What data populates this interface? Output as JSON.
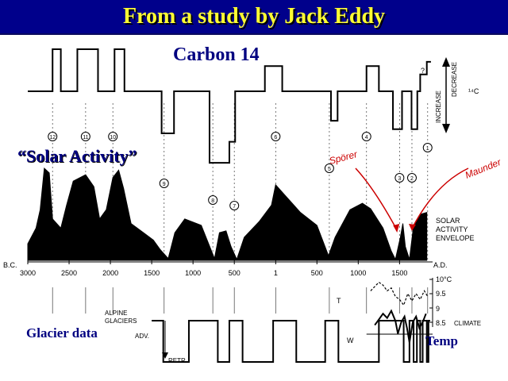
{
  "slide": {
    "title": "From a study by Jack Eddy",
    "carbon_label": "Carbon 14",
    "solar_label": "“Solar Activity”",
    "glacier_label": "Glacier data",
    "temp_label": "Temp"
  },
  "chart_data": {
    "type": "line",
    "x_axis": {
      "domain": [
        -3000,
        1900
      ],
      "ticks": [
        -3000,
        -2500,
        -2000,
        -1500,
        -1000,
        -500,
        1,
        500,
        1000,
        1500
      ],
      "tick_labels": [
        "3000",
        "2500",
        "2000",
        "1500",
        "1000",
        "500",
        "1",
        "500",
        "1000",
        "1500"
      ],
      "left_era": "B.C.",
      "right_era": "A.D."
    },
    "carbon14": {
      "axis_label_increase": "INCREASE",
      "axis_label_decrease": "DECREASE",
      "axis_label_unit": "¹⁴C",
      "question_mark": "?",
      "levels": [
        {
          "x": -3000,
          "v": 0
        },
        {
          "x": -2700,
          "v": 1
        },
        {
          "x": -2600,
          "v": 0
        },
        {
          "x": -2400,
          "v": 1
        },
        {
          "x": -2150,
          "v": 0
        },
        {
          "x": -1950,
          "v": 1
        },
        {
          "x": -1830,
          "v": 0
        },
        {
          "x": -1380,
          "v": -1
        },
        {
          "x": -1230,
          "v": 0
        },
        {
          "x": -800,
          "v": -1.7
        },
        {
          "x": -560,
          "v": -1.2
        },
        {
          "x": -490,
          "v": 0
        },
        {
          "x": -130,
          "v": 0.6
        },
        {
          "x": 80,
          "v": 0
        },
        {
          "x": 670,
          "v": -0.7
        },
        {
          "x": 750,
          "v": 0
        },
        {
          "x": 1100,
          "v": 0.6
        },
        {
          "x": 1250,
          "v": 0
        },
        {
          "x": 1420,
          "v": -0.9
        },
        {
          "x": 1530,
          "v": 0
        },
        {
          "x": 1645,
          "v": -0.9
        },
        {
          "x": 1715,
          "v": 0
        },
        {
          "x": 1750,
          "v": 0.4
        },
        {
          "x": 1830,
          "v": 0.7
        }
      ]
    },
    "solar_envelope": {
      "label": [
        "SOLAR",
        "ACTIVITY",
        "ENVELOPE"
      ],
      "points": [
        {
          "x": -3000,
          "y": 0.18
        },
        {
          "x": -2900,
          "y": 0.35
        },
        {
          "x": -2850,
          "y": 0.55
        },
        {
          "x": -2800,
          "y": 1.0
        },
        {
          "x": -2740,
          "y": 0.95
        },
        {
          "x": -2700,
          "y": 0.45
        },
        {
          "x": -2600,
          "y": 0.35
        },
        {
          "x": -2530,
          "y": 0.6
        },
        {
          "x": -2450,
          "y": 0.86
        },
        {
          "x": -2300,
          "y": 0.93
        },
        {
          "x": -2200,
          "y": 0.8
        },
        {
          "x": -2130,
          "y": 0.45
        },
        {
          "x": -2050,
          "y": 0.55
        },
        {
          "x": -1970,
          "y": 0.9
        },
        {
          "x": -1900,
          "y": 0.98
        },
        {
          "x": -1840,
          "y": 0.78
        },
        {
          "x": -1750,
          "y": 0.4
        },
        {
          "x": -1600,
          "y": 0.3
        },
        {
          "x": -1480,
          "y": 0.22
        },
        {
          "x": -1400,
          "y": 0.12
        },
        {
          "x": -1300,
          "y": 0.02
        },
        {
          "x": -1220,
          "y": 0.3
        },
        {
          "x": -1100,
          "y": 0.45
        },
        {
          "x": -900,
          "y": 0.38
        },
        {
          "x": -820,
          "y": 0.2
        },
        {
          "x": -740,
          "y": 0.02
        },
        {
          "x": -680,
          "y": 0.3
        },
        {
          "x": -600,
          "y": 0.32
        },
        {
          "x": -540,
          "y": 0.15
        },
        {
          "x": -470,
          "y": 0.01
        },
        {
          "x": -380,
          "y": 0.25
        },
        {
          "x": -200,
          "y": 0.42
        },
        {
          "x": -50,
          "y": 0.6
        },
        {
          "x": 0,
          "y": 0.82
        },
        {
          "x": 120,
          "y": 0.7
        },
        {
          "x": 300,
          "y": 0.52
        },
        {
          "x": 500,
          "y": 0.38
        },
        {
          "x": 640,
          "y": 0.05
        },
        {
          "x": 720,
          "y": 0.25
        },
        {
          "x": 900,
          "y": 0.55
        },
        {
          "x": 1050,
          "y": 0.62
        },
        {
          "x": 1150,
          "y": 0.56
        },
        {
          "x": 1300,
          "y": 0.35
        },
        {
          "x": 1400,
          "y": 0.1
        },
        {
          "x": 1450,
          "y": 0.01
        },
        {
          "x": 1510,
          "y": 0.25
        },
        {
          "x": 1540,
          "y": 0.4
        },
        {
          "x": 1570,
          "y": 0.15
        },
        {
          "x": 1620,
          "y": 0.01
        },
        {
          "x": 1670,
          "y": 0.38
        },
        {
          "x": 1750,
          "y": 0.5
        },
        {
          "x": 1830,
          "y": 0.52
        }
      ]
    },
    "events": [
      {
        "num": "12",
        "x": -2700
      },
      {
        "num": "11",
        "x": -2300
      },
      {
        "num": "10",
        "x": -1970
      },
      {
        "num": "9",
        "x": -1350
      },
      {
        "num": "8",
        "x": -760
      },
      {
        "num": "7",
        "x": -500
      },
      {
        "num": "6",
        "x": 1
      },
      {
        "num": "5",
        "x": 650
      },
      {
        "num": "4",
        "x": 1100
      },
      {
        "num": "3",
        "x": 1500
      },
      {
        "num": "2",
        "x": 1650
      },
      {
        "num": "1",
        "x": 1840
      }
    ],
    "annotations": {
      "sporer": "Spörer",
      "maunder": "Maunder"
    },
    "glaciers": {
      "label_top": "ALPINE",
      "label_mid": "GLACIERS",
      "adv": "ADV.",
      "retr": "RETR.",
      "levels": [
        {
          "x": -1500,
          "v": 1
        },
        {
          "x": -1360,
          "v": 0
        },
        {
          "x": -1050,
          "v": 1
        },
        {
          "x": -700,
          "v": 0
        },
        {
          "x": -560,
          "v": 1
        },
        {
          "x": -400,
          "v": 0
        },
        {
          "x": -30,
          "v": 1
        },
        {
          "x": 250,
          "v": 0
        },
        {
          "x": 600,
          "v": 1
        },
        {
          "x": 760,
          "v": 0
        },
        {
          "x": 1250,
          "v": 1
        },
        {
          "x": 1550,
          "v": 0
        },
        {
          "x": 1620,
          "v": 1
        },
        {
          "x": 1670,
          "v": 0
        },
        {
          "x": 1710,
          "v": 1
        },
        {
          "x": 1750,
          "v": 0
        },
        {
          "x": 1780,
          "v": 1
        },
        {
          "x": 1830,
          "v": 0
        },
        {
          "x": 1850,
          "v": 1
        }
      ]
    },
    "climate": {
      "label": "CLIMATE",
      "ticks": [
        "10°C",
        "9.5",
        "9",
        "8.5"
      ],
      "t_label": "T",
      "w_label": "W",
      "temperature": [
        {
          "x": 1150,
          "v": 9.6
        },
        {
          "x": 1200,
          "v": 9.75
        },
        {
          "x": 1250,
          "v": 9.9
        },
        {
          "x": 1300,
          "v": 9.8
        },
        {
          "x": 1350,
          "v": 9.6
        },
        {
          "x": 1400,
          "v": 9.7
        },
        {
          "x": 1450,
          "v": 9.4
        },
        {
          "x": 1500,
          "v": 9.3
        },
        {
          "x": 1550,
          "v": 9.1
        },
        {
          "x": 1600,
          "v": 9.5
        },
        {
          "x": 1650,
          "v": 9.25
        },
        {
          "x": 1700,
          "v": 9.5
        },
        {
          "x": 1750,
          "v": 9.3
        },
        {
          "x": 1800,
          "v": 9.6
        },
        {
          "x": 1840,
          "v": 9.4
        }
      ],
      "wetness": [
        {
          "x": 1200,
          "v": 8.4
        },
        {
          "x": 1250,
          "v": 8.6
        },
        {
          "x": 1300,
          "v": 8.8
        },
        {
          "x": 1350,
          "v": 8.65
        },
        {
          "x": 1400,
          "v": 8.9
        },
        {
          "x": 1450,
          "v": 8.55
        },
        {
          "x": 1480,
          "v": 8.1
        },
        {
          "x": 1520,
          "v": 8.5
        },
        {
          "x": 1560,
          "v": 8.7
        },
        {
          "x": 1590,
          "v": 8.3
        },
        {
          "x": 1620,
          "v": 7.8
        },
        {
          "x": 1660,
          "v": 8.5
        },
        {
          "x": 1700,
          "v": 8.7
        },
        {
          "x": 1740,
          "v": 8.3
        },
        {
          "x": 1780,
          "v": 8.5
        },
        {
          "x": 1820,
          "v": 8.8
        }
      ]
    }
  }
}
